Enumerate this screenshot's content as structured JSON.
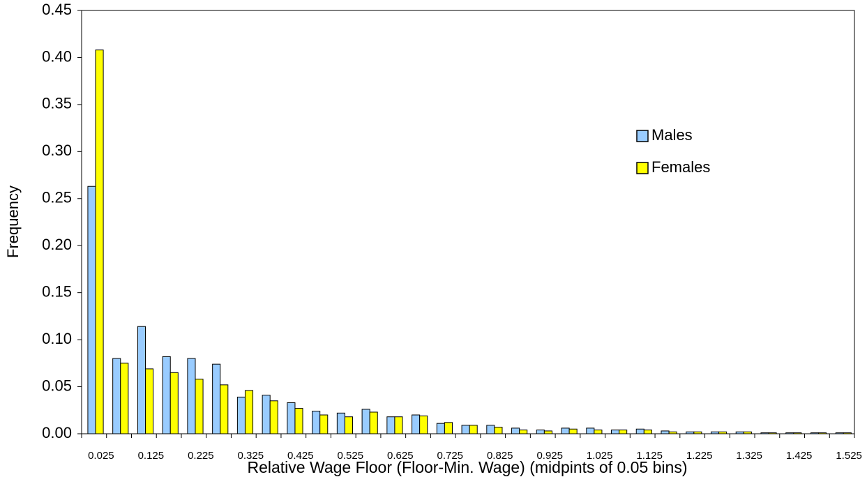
{
  "chart_data": {
    "type": "bar",
    "x_label": "Relative Wage Floor (Floor-Min. Wage) (midpints of 0.05 bins)",
    "y_label": "Frequency",
    "categories": [
      "0.025",
      null,
      "0.125",
      null,
      "0.225",
      null,
      "0.325",
      null,
      "0.425",
      null,
      "0.525",
      null,
      "0.625",
      null,
      "0.725",
      null,
      "0.825",
      null,
      "0.925",
      null,
      "1.025",
      null,
      "1.125",
      null,
      "1.225",
      null,
      "1.325",
      null,
      "1.425",
      null,
      "1.525"
    ],
    "series": [
      {
        "name": "Males",
        "color": "#99ccff",
        "values": [
          0.263,
          0.08,
          0.114,
          0.082,
          0.08,
          0.074,
          0.039,
          0.041,
          0.033,
          0.024,
          0.022,
          0.026,
          0.018,
          0.02,
          0.011,
          0.009,
          0.009,
          0.006,
          0.004,
          0.006,
          0.006,
          0.004,
          0.005,
          0.003,
          0.002,
          0.002,
          0.002,
          0.001,
          0.001,
          0.001,
          0.001
        ]
      },
      {
        "name": "Females",
        "color": "#ffff00",
        "values": [
          0.408,
          0.075,
          0.069,
          0.065,
          0.058,
          0.052,
          0.046,
          0.035,
          0.027,
          0.02,
          0.018,
          0.023,
          0.018,
          0.019,
          0.012,
          0.009,
          0.007,
          0.004,
          0.003,
          0.005,
          0.004,
          0.004,
          0.004,
          0.002,
          0.002,
          0.002,
          0.002,
          0.001,
          0.001,
          0.001,
          0.001
        ]
      }
    ],
    "ylim": [
      0,
      0.45
    ],
    "yticks": [
      {
        "value": 0,
        "label": "0.00"
      },
      {
        "value": 0.05,
        "label": "0.05"
      },
      {
        "value": 0.1,
        "label": "0.10"
      },
      {
        "value": 0.15,
        "label": "0.15"
      },
      {
        "value": 0.2,
        "label": "0.20"
      },
      {
        "value": 0.25,
        "label": "0.25"
      },
      {
        "value": 0.3,
        "label": "0.30"
      },
      {
        "value": 0.35,
        "label": "0.35"
      },
      {
        "value": 0.4,
        "label": "0.40"
      },
      {
        "value": 0.45,
        "label": "0.45"
      }
    ],
    "grid": false
  }
}
